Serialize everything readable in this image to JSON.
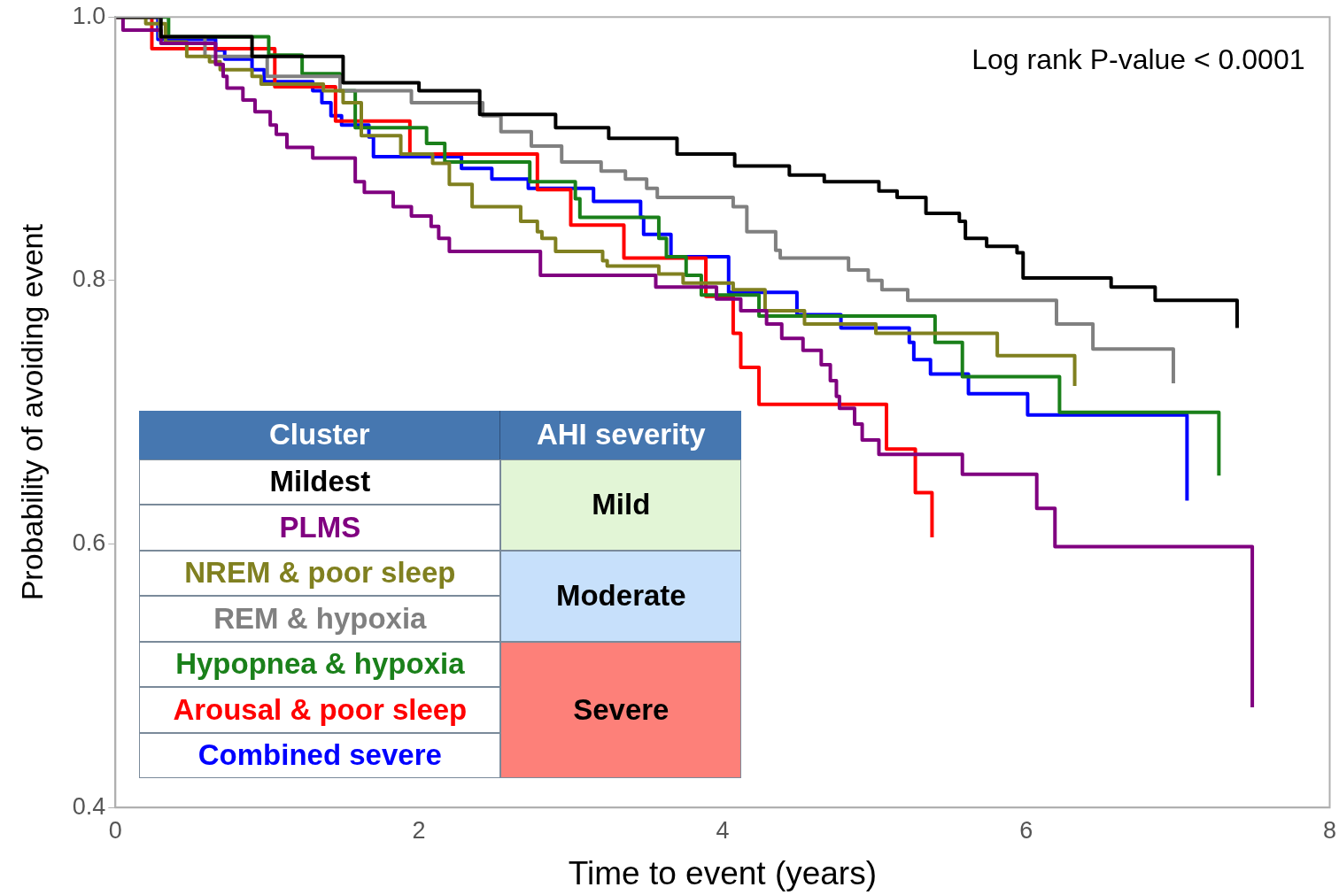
{
  "chart_data": {
    "type": "step",
    "xlabel": "Time to event (years)",
    "ylabel": "Probability of avoiding event",
    "legend_title": "Cluster",
    "legend": "bottom left",
    "annotations": [
      "Log rank P-value < 0.0001",
      "AHI severity",
      "Mild",
      "Moderate",
      "Severe"
    ],
    "xlim": [
      0,
      8
    ],
    "xticks": [
      0,
      2,
      4,
      6,
      8
    ],
    "ylim": [
      0.4,
      1.0
    ],
    "yticks": [
      0.4,
      0.6,
      0.8,
      {
        "value": 1,
        "label": "1.0"
      }
    ],
    "grid": false,
    "series": [
      {
        "name": "Mildest",
        "color": "#000000",
        "x": [
          0,
          0.3,
          0.9,
          1.5,
          2.0,
          2.4,
          2.9,
          3.25,
          3.7,
          4.08,
          4.44,
          4.67,
          5.03,
          5.15,
          5.34,
          5.56,
          5.6,
          5.74,
          5.94,
          5.98,
          6.56,
          6.85,
          7.39,
          7.39
        ],
        "values": [
          1,
          0.985,
          0.97,
          0.95,
          0.944,
          0.926,
          0.916,
          0.908,
          0.896,
          0.887,
          0.88,
          0.875,
          0.868,
          0.863,
          0.851,
          0.845,
          0.832,
          0.826,
          0.821,
          0.802,
          0.795,
          0.785,
          0.785,
          0.764
        ]
      },
      {
        "name": "PLMS",
        "color": "#800080",
        "x": [
          0,
          0.05,
          0.3,
          0.66,
          0.71,
          0.735,
          0.84,
          0.92,
          1.02,
          1.06,
          1.13,
          1.3,
          1.58,
          1.64,
          1.83,
          1.95,
          2.08,
          2.13,
          2.2,
          2.8,
          3.56,
          3.96,
          4.12,
          4.29,
          4.39,
          4.53,
          4.65,
          4.71,
          4.75,
          4.77,
          4.87,
          4.92,
          5.03,
          5.58,
          6.07,
          6.19,
          7.49,
          7.49
        ],
        "values": [
          1,
          0.99,
          0.98,
          0.964,
          0.955,
          0.946,
          0.937,
          0.928,
          0.918,
          0.911,
          0.901,
          0.893,
          0.875,
          0.867,
          0.856,
          0.849,
          0.841,
          0.832,
          0.822,
          0.804,
          0.795,
          0.786,
          0.777,
          0.767,
          0.756,
          0.747,
          0.736,
          0.724,
          0.712,
          0.703,
          0.691,
          0.679,
          0.668,
          0.653,
          0.627,
          0.598,
          0.598,
          0.476
        ]
      },
      {
        "name": "NREM & poor sleep",
        "color": "#808020",
        "x": [
          0,
          0.2,
          0.33,
          0.47,
          0.62,
          0.69,
          0.9,
          0.96,
          1.37,
          1.5,
          1.62,
          1.88,
          2.09,
          2.2,
          2.35,
          2.67,
          2.78,
          2.81,
          2.9,
          3.21,
          3.24,
          3.58,
          3.74,
          4.07,
          4.28,
          4.54,
          5.01,
          5.81,
          6.32,
          6.32
        ],
        "values": [
          1,
          0.995,
          0.981,
          0.97,
          0.966,
          0.96,
          0.955,
          0.949,
          0.944,
          0.935,
          0.91,
          0.896,
          0.889,
          0.873,
          0.856,
          0.845,
          0.837,
          0.832,
          0.822,
          0.815,
          0.811,
          0.805,
          0.798,
          0.793,
          0.777,
          0.767,
          0.76,
          0.743,
          0.743,
          0.72
        ]
      },
      {
        "name": "REM & hypoxia",
        "color": "#808080",
        "x": [
          0,
          0.29,
          0.59,
          1.0,
          1.48,
          1.95,
          2.42,
          2.54,
          2.74,
          2.94,
          3.2,
          3.36,
          3.5,
          3.57,
          4.07,
          4.16,
          4.35,
          4.38,
          4.83,
          4.96,
          5.05,
          5.22,
          6.2,
          6.44,
          6.97,
          6.97
        ],
        "values": [
          1,
          0.985,
          0.97,
          0.955,
          0.944,
          0.935,
          0.925,
          0.913,
          0.902,
          0.89,
          0.883,
          0.877,
          0.87,
          0.863,
          0.856,
          0.837,
          0.823,
          0.817,
          0.808,
          0.8,
          0.793,
          0.785,
          0.767,
          0.748,
          0.748,
          0.722
        ]
      },
      {
        "name": "Hypopnea & hypoxia",
        "color": "#1a801a",
        "x": [
          0,
          0.35,
          1.01,
          1.23,
          1.48,
          1.58,
          2.05,
          2.17,
          2.73,
          3.03,
          3.06,
          3.58,
          3.63,
          3.76,
          3.86,
          4.24,
          5.4,
          5.58,
          6.22,
          7.27,
          7.27
        ],
        "values": [
          1,
          0.985,
          0.971,
          0.957,
          0.944,
          0.916,
          0.904,
          0.89,
          0.875,
          0.862,
          0.848,
          0.832,
          0.818,
          0.804,
          0.789,
          0.773,
          0.753,
          0.727,
          0.7,
          0.7,
          0.652
        ]
      },
      {
        "name": "Arousal & poor sleep",
        "color": "#ff0000",
        "x": [
          0,
          0.24,
          1.05,
          1.45,
          1.94,
          2.78,
          3.0,
          3.35,
          3.89,
          4.07,
          4.12,
          4.24,
          5.08,
          5.27,
          5.38,
          5.38
        ],
        "values": [
          1,
          0.976,
          0.947,
          0.921,
          0.896,
          0.869,
          0.842,
          0.817,
          0.788,
          0.76,
          0.734,
          0.706,
          0.672,
          0.639,
          0.639,
          0.605
        ]
      },
      {
        "name": "Combined severe",
        "color": "#0000ff",
        "x": [
          0,
          0.28,
          0.66,
          0.72,
          0.9,
          0.98,
          1.3,
          1.36,
          1.42,
          1.49,
          1.67,
          1.7,
          2.28,
          2.48,
          2.72,
          3.15,
          3.46,
          3.48,
          3.66,
          4.04,
          4.49,
          4.78,
          5.23,
          5.26,
          5.37,
          5.62,
          6.01,
          7.06,
          7.06
        ],
        "values": [
          1,
          0.983,
          0.975,
          0.968,
          0.96,
          0.951,
          0.944,
          0.935,
          0.925,
          0.918,
          0.909,
          0.894,
          0.885,
          0.877,
          0.87,
          0.86,
          0.848,
          0.835,
          0.818,
          0.791,
          0.774,
          0.764,
          0.753,
          0.74,
          0.729,
          0.714,
          0.698,
          0.698,
          0.633
        ]
      }
    ]
  }
}
